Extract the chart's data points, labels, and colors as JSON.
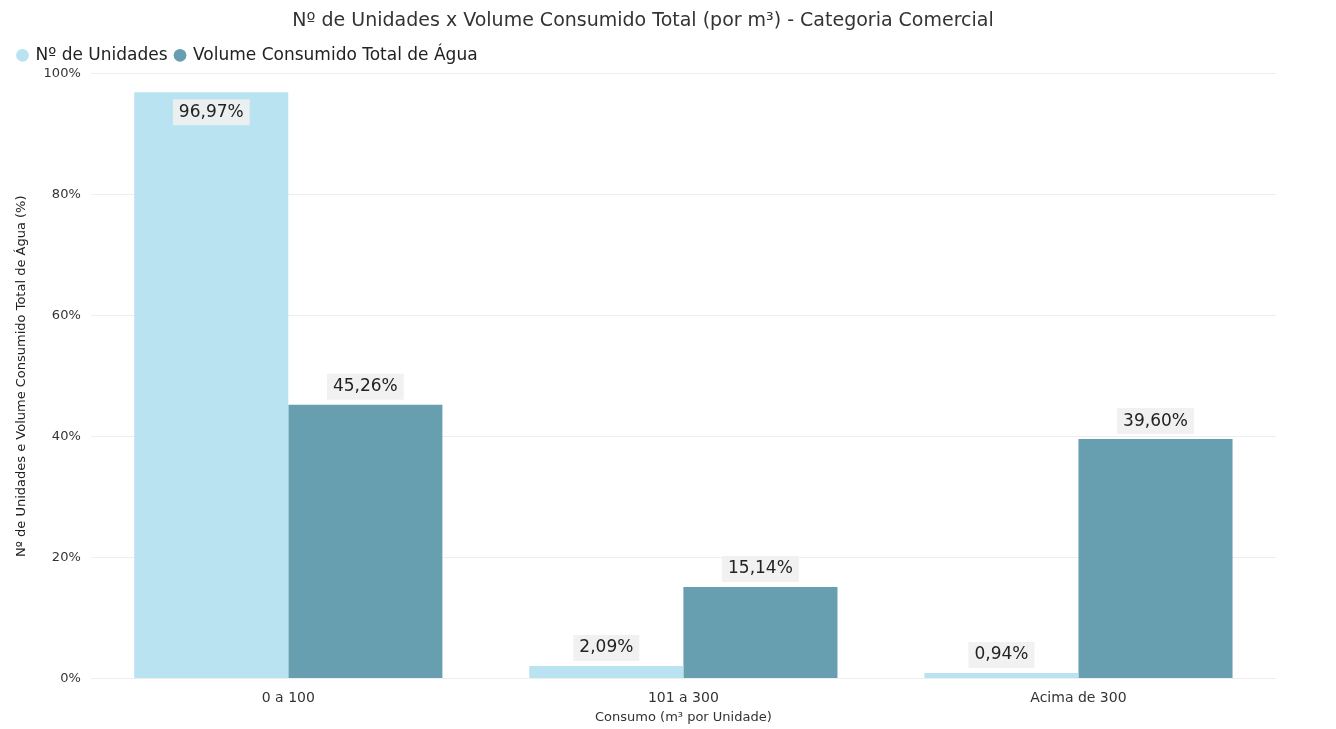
{
  "chart_data": {
    "type": "bar",
    "title": "Nº de Unidades x Volume Consumido Total (por m³) - Categoria Comercial",
    "xlabel": "Consumo (m³ por Unidade)",
    "ylabel": "Nº de Unidades e Volume Consumido Total de Água (%)",
    "categories": [
      "0 a 100",
      "101 a 300",
      "Acima de 300"
    ],
    "series": [
      {
        "name": "Nº de Unidades",
        "color": "#b9e3f1",
        "values": [
          96.97,
          2.09,
          0.94
        ],
        "value_labels": [
          "96,97%",
          "2,09%",
          "0,94%"
        ]
      },
      {
        "name": "Volume Consumido Total de Água",
        "color": "#679fb0",
        "values": [
          45.26,
          15.14,
          39.6
        ],
        "value_labels": [
          "45,26%",
          "15,14%",
          "39,60%"
        ]
      }
    ],
    "ylim": [
      0,
      100
    ],
    "yticks": [
      {
        "value": 0,
        "label": "0%"
      },
      {
        "value": 20,
        "label": "20%"
      },
      {
        "value": 40,
        "label": "40%"
      },
      {
        "value": 60,
        "label": "60%"
      },
      {
        "value": 80,
        "label": "80%"
      },
      {
        "value": 100,
        "label": "100%"
      }
    ],
    "grid": "y",
    "legend": "top left"
  }
}
